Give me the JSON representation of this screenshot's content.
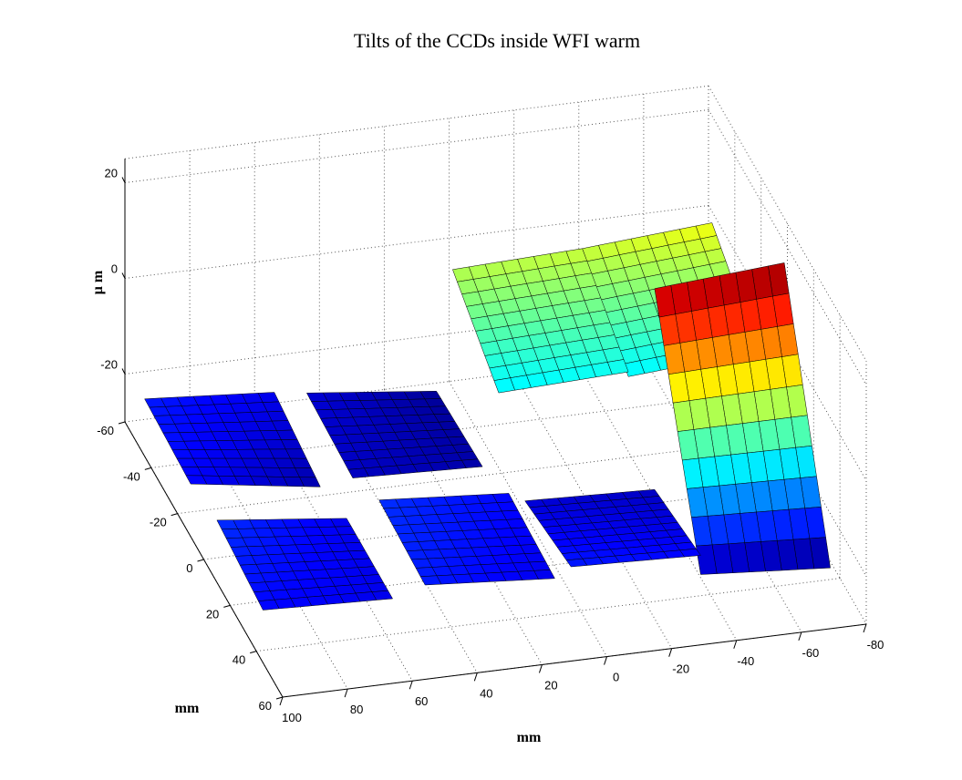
{
  "chart_data": {
    "type": "surface3d",
    "title": "Tilts of the CCDs inside WFI warm",
    "xlabel": "mm",
    "ylabel": "mm",
    "zlabel": "μ m",
    "x_ticks": [
      "100",
      "80",
      "60",
      "40",
      "20",
      "0",
      "-20",
      "-40",
      "-60",
      "-80"
    ],
    "y_ticks": [
      "-60",
      "-40",
      "-20",
      "0",
      "20",
      "40",
      "60"
    ],
    "z_ticks": [
      "20",
      "0",
      "-20"
    ],
    "xlim": [
      -80,
      100
    ],
    "ylim": [
      -60,
      60
    ],
    "zlim": [
      -30,
      25
    ],
    "grid": true,
    "colormap": [
      "#00007f",
      "#0000ff",
      "#007fff",
      "#00ffff",
      "#7fff7f",
      "#ffff00",
      "#ff7f00",
      "#ff0000",
      "#7f0000"
    ],
    "ccds": [
      {
        "x0": 60,
        "x1": 100,
        "y0": -45,
        "y1": -10,
        "z": [
          [
            -20,
            -18
          ],
          [
            -23,
            -19
          ]
        ]
      },
      {
        "x0": 10,
        "x1": 50,
        "y0": -45,
        "y1": -10,
        "z": [
          [
            -24,
            -21
          ],
          [
            -23,
            -22
          ]
        ]
      },
      {
        "x0": -35,
        "x1": 5,
        "y0": -45,
        "y1": -10,
        "z": [
          [
            2,
            1
          ],
          [
            -7,
            -8
          ]
        ]
      },
      {
        "x0": -75,
        "x1": -35,
        "y0": -45,
        "y1": -10,
        "z": [
          [
            4,
            2
          ],
          [
            -6,
            -8
          ]
        ]
      },
      {
        "x0": 60,
        "x1": 100,
        "y0": 10,
        "y1": 45,
        "z": [
          [
            -20,
            -17
          ],
          [
            -20,
            -19
          ]
        ]
      },
      {
        "x0": 10,
        "x1": 50,
        "y0": 10,
        "y1": 45,
        "z": [
          [
            -19,
            -17
          ],
          [
            -20,
            -18
          ]
        ]
      },
      {
        "x0": -35,
        "x1": 5,
        "y0": 10,
        "y1": 45,
        "z": [
          [
            -22,
            -21
          ],
          [
            -19,
            -18
          ]
        ]
      },
      {
        "x0": -75,
        "x1": -35,
        "y0": 10,
        "y1": 45,
        "z": [
          [
            22,
            20
          ],
          [
            -25,
            -23
          ]
        ]
      }
    ]
  }
}
